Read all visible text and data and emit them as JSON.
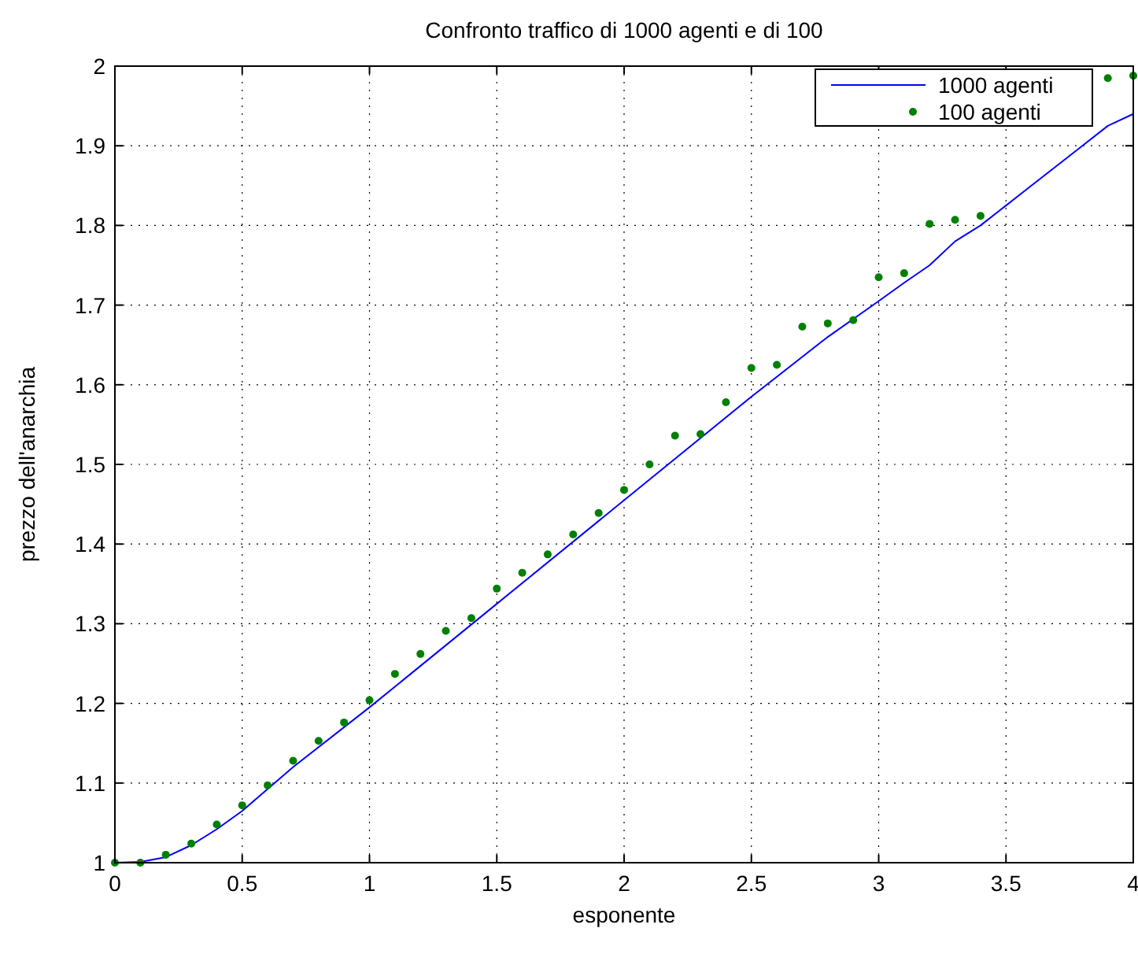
{
  "chart_data": {
    "type": "line",
    "title": "Confronto traffico di 1000 agenti e di 100",
    "xlabel": "esponente",
    "ylabel": "prezzo dell'anarchia",
    "xlim": [
      0,
      4
    ],
    "ylim": [
      1,
      2
    ],
    "xticks": [
      0,
      0.5,
      1,
      1.5,
      2,
      2.5,
      3,
      3.5,
      4
    ],
    "yticks": [
      1,
      1.1,
      1.2,
      1.3,
      1.4,
      1.5,
      1.6,
      1.7,
      1.8,
      1.9,
      2
    ],
    "grid": true,
    "legend": "top right",
    "series": [
      {
        "name": "1000 agenti",
        "color": "#0000ff",
        "marker": "none",
        "line_style": "solid",
        "x": [
          0,
          0.1,
          0.2,
          0.3,
          0.4,
          0.5,
          0.7,
          1,
          1.5,
          2,
          2.5,
          2.8,
          3,
          3.1,
          3.2,
          3.3,
          3.4,
          3.5,
          3.6,
          3.7,
          3.8,
          3.9,
          4
        ],
        "values": [
          1,
          1.001,
          1.007,
          1.022,
          1.042,
          1.065,
          1.12,
          1.195,
          1.325,
          1.455,
          1.585,
          1.66,
          1.705,
          1.728,
          1.75,
          1.78,
          1.8,
          1.825,
          1.85,
          1.875,
          1.9,
          1.925,
          1.94
        ]
      },
      {
        "name": "100 agenti",
        "type": "scatter",
        "color": "#008000",
        "marker": "circle",
        "x": [
          0,
          0.1,
          0.2,
          0.3,
          0.4,
          0.5,
          0.6,
          0.7,
          0.8,
          0.9,
          1,
          1.1,
          1.2,
          1.3,
          1.4,
          1.5,
          1.6,
          1.7,
          1.8,
          1.9,
          2,
          2.1,
          2.2,
          2.3,
          2.4,
          2.5,
          2.6,
          2.7,
          2.8,
          2.9,
          3,
          3.1,
          3.2,
          3.3,
          3.4,
          3.5,
          3.6,
          3.7,
          3.8,
          3.9,
          4
        ],
        "values": [
          1,
          1,
          1.01,
          1.024,
          1.048,
          1.072,
          1.097,
          1.128,
          1.153,
          1.176,
          1.204,
          1.237,
          1.262,
          1.291,
          1.307,
          1.344,
          1.364,
          1.387,
          1.412,
          1.439,
          1.468,
          1.5,
          1.536,
          1.538,
          1.578,
          1.621,
          1.625,
          1.673,
          1.677,
          1.681,
          1.735,
          1.74,
          1.802,
          1.807,
          1.812,
          null,
          null,
          null,
          null,
          1.985,
          1.988
        ]
      }
    ]
  }
}
